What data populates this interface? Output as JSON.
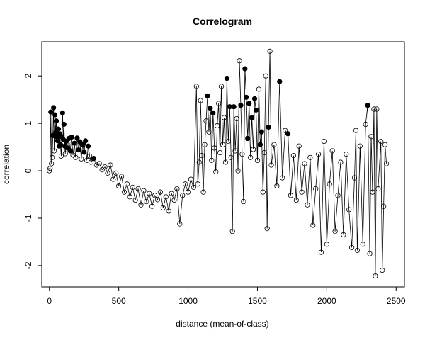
{
  "chart_data": {
    "type": "scatter",
    "title": "Correlogram",
    "xlabel": "distance (mean-of-class)",
    "ylabel": "correlation",
    "xlim": [
      -55,
      2560
    ],
    "ylim": [
      -2.45,
      2.72
    ],
    "x_ticks": [
      0,
      500,
      1000,
      1500,
      2000,
      2500
    ],
    "y_ticks": [
      -2,
      -1,
      0,
      1,
      2
    ],
    "x_tick_labels": [
      "0",
      "500",
      "1000",
      "1500",
      "2000",
      "2500"
    ],
    "y_tick_labels": [
      "-2",
      "-1",
      "0",
      "1",
      "2"
    ],
    "grid": false,
    "legend": "none",
    "connected": true,
    "marker_fill": {
      "significant": "#000000",
      "not_significant": "none"
    },
    "line_color": "#000000",
    "series": [
      {
        "name": "",
        "points": [
          [
            0,
            0.0,
            0
          ],
          [
            5,
            0.05,
            0
          ],
          [
            10,
            1.24,
            1
          ],
          [
            15,
            0.15,
            0
          ],
          [
            20,
            0.28,
            0
          ],
          [
            25,
            0.74,
            1
          ],
          [
            30,
            1.33,
            1
          ],
          [
            35,
            0.42,
            0
          ],
          [
            40,
            1.18,
            1
          ],
          [
            45,
            0.81,
            1
          ],
          [
            50,
            1.05,
            1
          ],
          [
            55,
            0.71,
            1
          ],
          [
            60,
            0.63,
            1
          ],
          [
            65,
            0.88,
            1
          ],
          [
            70,
            0.52,
            1
          ],
          [
            75,
            0.78,
            1
          ],
          [
            80,
            0.55,
            1
          ],
          [
            85,
            0.31,
            0
          ],
          [
            90,
            0.72,
            1
          ],
          [
            95,
            1.22,
            1
          ],
          [
            100,
            0.66,
            1
          ],
          [
            105,
            0.98,
            1
          ],
          [
            110,
            0.52,
            1
          ],
          [
            115,
            0.36,
            0
          ],
          [
            120,
            0.62,
            1
          ],
          [
            130,
            0.48,
            1
          ],
          [
            140,
            0.68,
            1
          ],
          [
            150,
            0.42,
            1
          ],
          [
            160,
            0.71,
            1
          ],
          [
            170,
            0.33,
            0
          ],
          [
            180,
            0.58,
            1
          ],
          [
            190,
            0.28,
            0
          ],
          [
            200,
            0.69,
            1
          ],
          [
            210,
            0.44,
            1
          ],
          [
            220,
            0.61,
            1
          ],
          [
            230,
            0.25,
            0
          ],
          [
            240,
            0.55,
            1
          ],
          [
            250,
            0.39,
            1
          ],
          [
            260,
            0.63,
            1
          ],
          [
            270,
            0.22,
            0
          ],
          [
            280,
            0.52,
            1
          ],
          [
            290,
            0.31,
            0
          ],
          [
            300,
            0.18,
            0
          ],
          [
            320,
            0.26,
            1
          ],
          [
            340,
            0.12,
            0
          ],
          [
            360,
            0.15,
            0
          ],
          [
            380,
            0.02,
            0
          ],
          [
            400,
            0.08,
            0
          ],
          [
            420,
            -0.05,
            0
          ],
          [
            440,
            0.12,
            0
          ],
          [
            460,
            -0.18,
            0
          ],
          [
            480,
            -0.05,
            0
          ],
          [
            500,
            -0.32,
            0
          ],
          [
            520,
            -0.12,
            0
          ],
          [
            540,
            -0.45,
            0
          ],
          [
            560,
            -0.28,
            0
          ],
          [
            580,
            -0.55,
            0
          ],
          [
            600,
            -0.35,
            0
          ],
          [
            620,
            -0.62,
            0
          ],
          [
            640,
            -0.38,
            0
          ],
          [
            660,
            -0.72,
            0
          ],
          [
            680,
            -0.42,
            0
          ],
          [
            700,
            -0.65,
            0
          ],
          [
            720,
            -0.48,
            0
          ],
          [
            740,
            -0.75,
            0
          ],
          [
            760,
            -0.52,
            0
          ],
          [
            780,
            -0.61,
            0
          ],
          [
            800,
            -0.45,
            0
          ],
          [
            820,
            -0.78,
            0
          ],
          [
            840,
            -0.55,
            0
          ],
          [
            860,
            -0.85,
            0
          ],
          [
            880,
            -0.48,
            0
          ],
          [
            900,
            -0.62,
            0
          ],
          [
            920,
            -0.38,
            0
          ],
          [
            940,
            -1.12,
            0
          ],
          [
            960,
            -0.52,
            0
          ],
          [
            980,
            -0.28,
            0
          ],
          [
            1000,
            -0.45,
            0
          ],
          [
            1020,
            -0.18,
            0
          ],
          [
            1040,
            -0.35,
            0
          ],
          [
            1060,
            1.78,
            0
          ],
          [
            1070,
            -0.28,
            0
          ],
          [
            1080,
            0.18,
            0
          ],
          [
            1090,
            1.48,
            0
          ],
          [
            1100,
            0.32,
            0
          ],
          [
            1110,
            -0.45,
            0
          ],
          [
            1120,
            0.55,
            0
          ],
          [
            1130,
            1.05,
            0
          ],
          [
            1140,
            1.58,
            1
          ],
          [
            1150,
            0.82,
            0
          ],
          [
            1160,
            1.32,
            1
          ],
          [
            1170,
            0.22,
            0
          ],
          [
            1180,
            1.22,
            1
          ],
          [
            1190,
            0.48,
            0
          ],
          [
            1200,
            -0.02,
            0
          ],
          [
            1210,
            0.95,
            0
          ],
          [
            1220,
            1.42,
            0
          ],
          [
            1230,
            0.38,
            0
          ],
          [
            1240,
            1.78,
            0
          ],
          [
            1250,
            0.55,
            0
          ],
          [
            1260,
            1.12,
            0
          ],
          [
            1270,
            0.18,
            0
          ],
          [
            1280,
            1.95,
            1
          ],
          [
            1290,
            0.62,
            0
          ],
          [
            1300,
            1.35,
            1
          ],
          [
            1310,
            0.28,
            0
          ],
          [
            1320,
            -1.28,
            0
          ],
          [
            1330,
            1.35,
            1
          ],
          [
            1340,
            0.42,
            0
          ],
          [
            1350,
            1.1,
            0
          ],
          [
            1360,
            0.0,
            0
          ],
          [
            1370,
            2.32,
            0
          ],
          [
            1380,
            1.38,
            1
          ],
          [
            1390,
            0.35,
            0
          ],
          [
            1400,
            -0.65,
            0
          ],
          [
            1410,
            2.15,
            1
          ],
          [
            1420,
            1.55,
            1
          ],
          [
            1430,
            0.68,
            1
          ],
          [
            1440,
            1.42,
            1
          ],
          [
            1450,
            0.28,
            0
          ],
          [
            1460,
            1.12,
            1
          ],
          [
            1470,
            0.45,
            0
          ],
          [
            1480,
            1.52,
            1
          ],
          [
            1490,
            1.28,
            1
          ],
          [
            1500,
            0.22,
            0
          ],
          [
            1510,
            1.72,
            0
          ],
          [
            1520,
            0.55,
            1
          ],
          [
            1530,
            0.82,
            1
          ],
          [
            1540,
            -0.45,
            0
          ],
          [
            1550,
            0.38,
            0
          ],
          [
            1560,
            2.0,
            0
          ],
          [
            1570,
            -1.22,
            0
          ],
          [
            1580,
            0.92,
            1
          ],
          [
            1590,
            2.52,
            0
          ],
          [
            1600,
            0.12,
            0
          ],
          [
            1620,
            0.55,
            0
          ],
          [
            1640,
            -0.32,
            0
          ],
          [
            1660,
            1.88,
            1
          ],
          [
            1680,
            -0.15,
            0
          ],
          [
            1700,
            0.85,
            0
          ],
          [
            1720,
            0.78,
            1
          ],
          [
            1740,
            -0.52,
            0
          ],
          [
            1760,
            0.32,
            0
          ],
          [
            1780,
            -0.62,
            0
          ],
          [
            1800,
            0.52,
            0
          ],
          [
            1820,
            -0.45,
            0
          ],
          [
            1840,
            0.15,
            0
          ],
          [
            1860,
            -0.72,
            0
          ],
          [
            1880,
            0.28,
            0
          ],
          [
            1900,
            -1.15,
            0
          ],
          [
            1920,
            -0.38,
            0
          ],
          [
            1940,
            0.35,
            0
          ],
          [
            1960,
            -1.72,
            0
          ],
          [
            1980,
            0.62,
            0
          ],
          [
            2000,
            -1.55,
            0
          ],
          [
            2020,
            -0.28,
            0
          ],
          [
            2040,
            0.42,
            0
          ],
          [
            2060,
            -1.28,
            0
          ],
          [
            2080,
            -0.52,
            0
          ],
          [
            2100,
            0.18,
            0
          ],
          [
            2120,
            -1.35,
            0
          ],
          [
            2140,
            0.35,
            0
          ],
          [
            2160,
            -0.82,
            0
          ],
          [
            2180,
            -1.62,
            0
          ],
          [
            2200,
            -0.15,
            0
          ],
          [
            2210,
            0.85,
            0
          ],
          [
            2220,
            -1.68,
            0
          ],
          [
            2240,
            0.52,
            0
          ],
          [
            2260,
            -1.55,
            0
          ],
          [
            2280,
            0.98,
            0
          ],
          [
            2295,
            1.38,
            1
          ],
          [
            2310,
            -1.75,
            0
          ],
          [
            2320,
            0.72,
            0
          ],
          [
            2330,
            -0.45,
            0
          ],
          [
            2340,
            1.3,
            0
          ],
          [
            2350,
            -2.22,
            0
          ],
          [
            2360,
            1.3,
            0
          ],
          [
            2370,
            -0.38,
            0
          ],
          [
            2390,
            0.62,
            0
          ],
          [
            2400,
            -2.1,
            0
          ],
          [
            2410,
            -0.75,
            0
          ],
          [
            2420,
            0.55,
            0
          ],
          [
            2430,
            0.15,
            0
          ]
        ]
      }
    ]
  }
}
